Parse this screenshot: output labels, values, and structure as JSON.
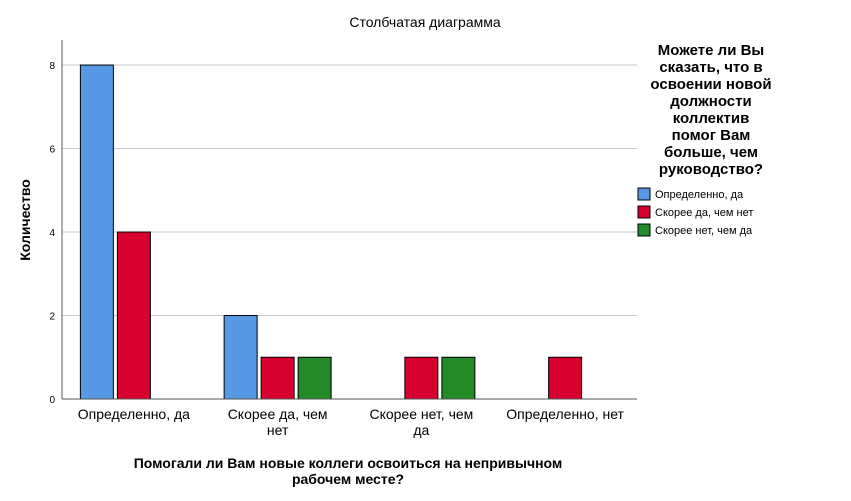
{
  "chart_data": {
    "type": "bar",
    "title": "Столбчатая диаграмма",
    "xlabel": "Помогали ли Вам новые коллеги освоиться на непривычном рабочем месте?",
    "ylabel": "Количество",
    "ylim": [
      0,
      8.6
    ],
    "yticks": [
      "0",
      "2",
      "4",
      "6",
      "8"
    ],
    "grid": true,
    "legend_position": "right",
    "legend_title": "Можете ли Вы сказать, что в освоении новой должности коллектив помог Вам больше, чем руководство?",
    "categories": [
      "Определенно, да",
      "Скорее да, чем нет",
      "Скорее нет, чем да",
      "Определенно, нет"
    ],
    "series": [
      {
        "name": "Определенно, да",
        "color": "#5899e5",
        "values": [
          8,
          2,
          null,
          null
        ]
      },
      {
        "name": "Скорее да, чем нет",
        "color": "#d8002f",
        "values": [
          4,
          1,
          1,
          1
        ]
      },
      {
        "name": "Скорее нет, чем да",
        "color": "#238a27",
        "values": [
          null,
          1,
          1,
          null
        ]
      }
    ]
  }
}
